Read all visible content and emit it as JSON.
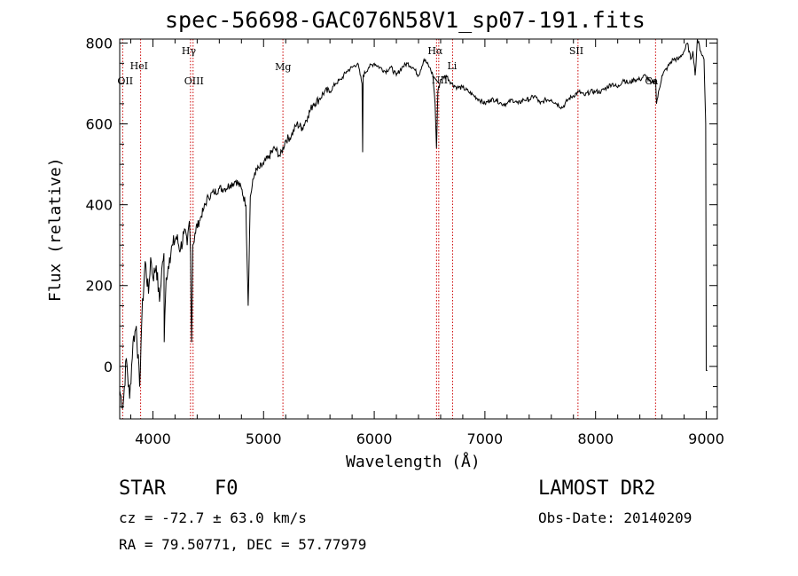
{
  "chart_data": {
    "type": "line",
    "title": "spec-56698-GAC076N58V1_sp07-191.fits",
    "xlabel": "Wavelength (Å)",
    "ylabel": "Flux (relative)",
    "xlim": [
      3700,
      9100
    ],
    "ylim": [
      -130,
      810
    ],
    "xticks": [
      4000,
      5000,
      6000,
      7000,
      8000,
      9000
    ],
    "yticks": [
      0,
      200,
      400,
      600,
      800
    ],
    "xtick_labels": [
      "4000",
      "5000",
      "6000",
      "7000",
      "8000",
      "9000"
    ],
    "ytick_labels": [
      "0",
      "200",
      "400",
      "600",
      "800"
    ],
    "series": [
      {
        "name": "spectrum",
        "x": [
          3700,
          3730,
          3760,
          3790,
          3820,
          3850,
          3880,
          3900,
          3930,
          3960,
          3980,
          4000,
          4030,
          4060,
          4080,
          4100,
          4102,
          4120,
          4150,
          4180,
          4210,
          4250,
          4280,
          4310,
          4330,
          4340,
          4350,
          4360,
          4380,
          4420,
          4460,
          4500,
          4550,
          4600,
          4650,
          4700,
          4750,
          4800,
          4840,
          4861,
          4880,
          4920,
          4960,
          5000,
          5050,
          5100,
          5150,
          5200,
          5250,
          5300,
          5350,
          5400,
          5450,
          5500,
          5550,
          5600,
          5650,
          5700,
          5750,
          5800,
          5850,
          5890,
          5895,
          5900,
          5950,
          6000,
          6050,
          6100,
          6150,
          6200,
          6250,
          6300,
          6350,
          6400,
          6450,
          6500,
          6530,
          6550,
          6563,
          6575,
          6600,
          6650,
          6700,
          6750,
          6800,
          6850,
          6900,
          6950,
          7000,
          7050,
          7100,
          7150,
          7200,
          7250,
          7300,
          7350,
          7400,
          7450,
          7500,
          7550,
          7600,
          7650,
          7700,
          7750,
          7800,
          7850,
          7900,
          7950,
          8000,
          8050,
          8100,
          8150,
          8200,
          8250,
          8300,
          8350,
          8400,
          8450,
          8500,
          8542,
          8550,
          8600,
          8650,
          8700,
          8750,
          8800,
          8830,
          8860,
          8880,
          8900,
          8920,
          8950,
          8980,
          8995,
          9000,
          9005,
          9010
        ],
        "values": [
          -60,
          -100,
          20,
          -80,
          60,
          100,
          -50,
          120,
          260,
          180,
          270,
          220,
          250,
          160,
          240,
          280,
          60,
          220,
          270,
          300,
          320,
          290,
          330,
          300,
          360,
          280,
          60,
          300,
          330,
          360,
          390,
          420,
          430,
          440,
          440,
          450,
          460,
          440,
          400,
          150,
          420,
          480,
          490,
          500,
          520,
          540,
          520,
          560,
          570,
          600,
          590,
          620,
          650,
          660,
          680,
          680,
          700,
          710,
          730,
          740,
          750,
          700,
          530,
          720,
          740,
          750,
          740,
          730,
          740,
          720,
          740,
          750,
          740,
          720,
          760,
          740,
          720,
          650,
          540,
          680,
          710,
          720,
          700,
          690,
          690,
          680,
          670,
          660,
          650,
          660,
          660,
          650,
          650,
          660,
          650,
          660,
          660,
          670,
          650,
          660,
          660,
          650,
          640,
          660,
          670,
          680,
          670,
          680,
          680,
          680,
          690,
          700,
          690,
          710,
          700,
          710,
          710,
          720,
          700,
          710,
          650,
          720,
          740,
          760,
          760,
          780,
          800,
          760,
          780,
          720,
          810,
          780,
          760,
          600,
          -10,
          -10,
          -10
        ]
      }
    ],
    "lines": [
      {
        "label": "OII",
        "x": 3727
      },
      {
        "label": "HeI",
        "x": 3889
      },
      {
        "label": "Hγ",
        "x": 4340
      },
      {
        "label": "OIII",
        "x": 4363
      },
      {
        "label": "Mg",
        "x": 5175
      },
      {
        "label": "Hα",
        "x": 6563
      },
      {
        "label": "NII",
        "x": 6583
      },
      {
        "label": "Li",
        "x": 6708
      },
      {
        "label": "SII",
        "x": 7841
      },
      {
        "label": "Ca",
        "x": 8542
      }
    ]
  },
  "info": {
    "object_type": "STAR",
    "subclass": "F0",
    "survey": "LAMOST DR2",
    "cz": "cz = -72.7 ± 63.0 km/s",
    "obs_date": "Obs-Date: 20140209",
    "radec": "RA =  79.50771, DEC =  57.77979"
  },
  "colors": {
    "spectrum": "#000000",
    "line_marker": "#cc0000",
    "axes": "#000000"
  }
}
